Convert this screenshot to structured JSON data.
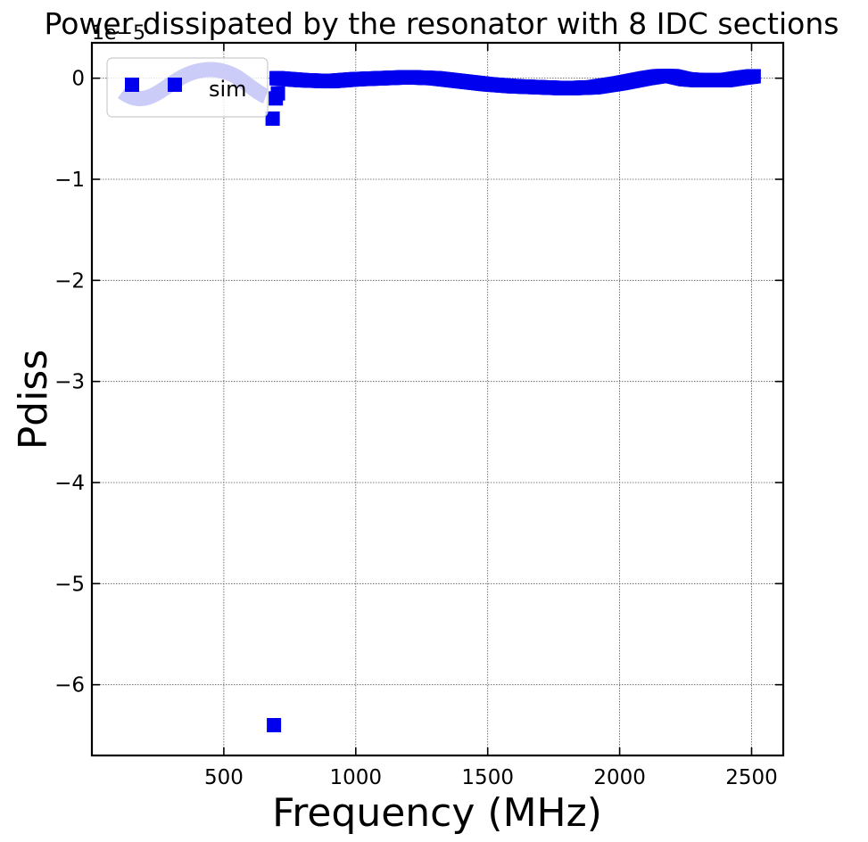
{
  "chart_data": {
    "type": "scatter",
    "title": "Power dissipated by the resonator with 8 IDC sections",
    "xlabel": "Frequency (MHz)",
    "ylabel": "Pdiss",
    "y_offset_label": "1e−5",
    "xlim": [
      0,
      2620
    ],
    "ylim": [
      -6.7,
      0.35
    ],
    "y_scale_factor": 1e-05,
    "x_ticks": [
      500,
      1000,
      1500,
      2000,
      2500
    ],
    "x_tick_labels": [
      "500",
      "1000",
      "1500",
      "2000",
      "2500"
    ],
    "y_ticks": [
      0,
      -1,
      -2,
      -3,
      -4,
      -5,
      -6
    ],
    "y_tick_labels": [
      "0",
      "−1",
      "−2",
      "−3",
      "−4",
      "−5",
      "−6"
    ],
    "grid": true,
    "legend_position": "top-left",
    "series": [
      {
        "name": "sim",
        "color": "#0000ee",
        "marker": "square",
        "x": [
          685,
          690,
          697,
          705
        ],
        "y": [
          -0.4,
          -6.4,
          -0.2,
          -0.15
        ],
        "dense_curve": {
          "x_start": 700,
          "x_end": 2510,
          "points": [
            [
              700,
              0.0
            ],
            [
              800,
              -0.02
            ],
            [
              900,
              -0.03
            ],
            [
              1000,
              -0.01
            ],
            [
              1100,
              0.0
            ],
            [
              1200,
              0.01
            ],
            [
              1300,
              0.0
            ],
            [
              1400,
              -0.03
            ],
            [
              1500,
              -0.06
            ],
            [
              1600,
              -0.08
            ],
            [
              1700,
              -0.09
            ],
            [
              1800,
              -0.1
            ],
            [
              1900,
              -0.09
            ],
            [
              2000,
              -0.05
            ],
            [
              2100,
              0.0
            ],
            [
              2150,
              0.02
            ],
            [
              2200,
              0.02
            ],
            [
              2250,
              -0.01
            ],
            [
              2300,
              -0.02
            ],
            [
              2400,
              -0.02
            ],
            [
              2450,
              0.0
            ],
            [
              2510,
              0.02
            ]
          ]
        }
      }
    ]
  }
}
